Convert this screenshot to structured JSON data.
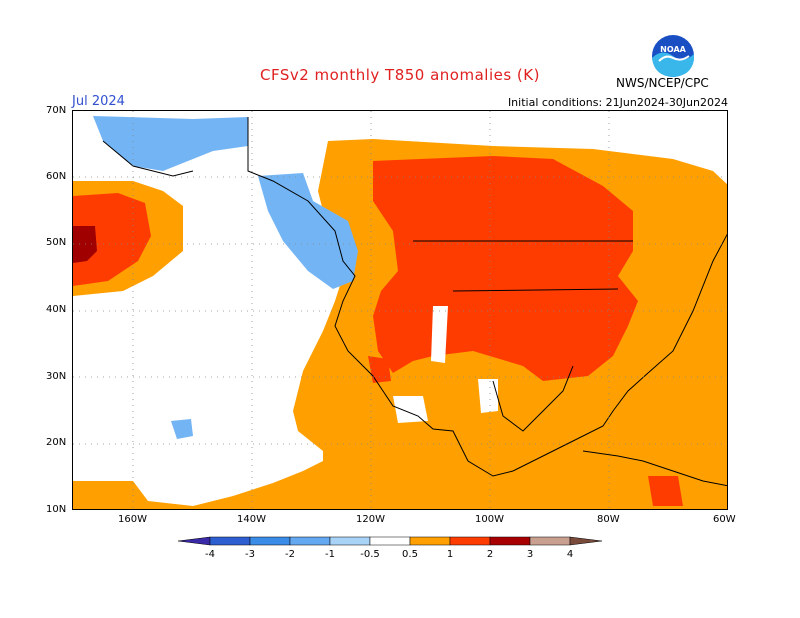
{
  "header": {
    "title": "CFSv2 monthly T850 anomalies (K)",
    "month": "Jul 2024",
    "initial_conditions": "Initial conditions: 21Jun2024-30Jun2024",
    "agency": "NWS/NCEP/CPC",
    "logo_text": "NOAA"
  },
  "axes": {
    "lat_labels": [
      "70N",
      "60N",
      "50N",
      "40N",
      "30N",
      "20N",
      "10N"
    ],
    "lon_labels": [
      "160W",
      "140W",
      "120W",
      "100W",
      "80W",
      "60W"
    ]
  },
  "colorbar": {
    "tick_labels": [
      "-4",
      "-3",
      "-2",
      "-1",
      "-0.5",
      "0.5",
      "1",
      "2",
      "3",
      "4"
    ],
    "colors": [
      "#3a2aa8",
      "#2d5fd0",
      "#3b8ce6",
      "#63a8f0",
      "#a9d2f7",
      "#ffffff",
      "#ff9f00",
      "#ff3c00",
      "#a80000",
      "#c9a090",
      "#7a4a3a"
    ]
  },
  "anomaly_colors": {
    "cold_light": "#73b4f5",
    "warm_light": "#ffa000",
    "warm_mid": "#ff3c00",
    "warm_strong": "#a00000"
  }
}
